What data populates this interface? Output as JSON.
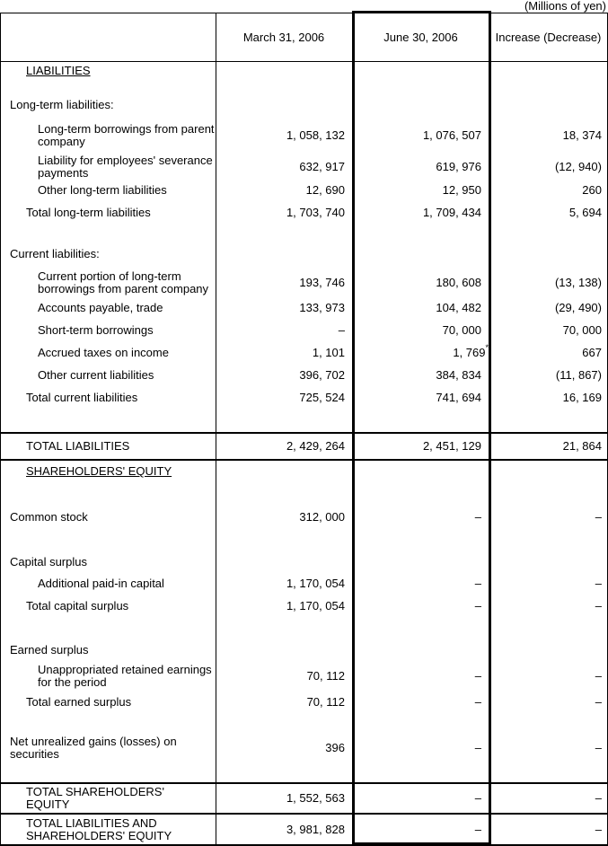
{
  "units_note": "(Millions of yen)",
  "header": {
    "col1": "",
    "col2": "March 31, 2006",
    "col3": "June 30, 2006",
    "col4": "Increase (Decrease)"
  },
  "sections": {
    "liabilities": {
      "rows": [
        {
          "label": "LIABILITIES",
          "indent": 1,
          "underline": true,
          "values": null,
          "mt": 3
        },
        {
          "label": "Long-term liabilities:",
          "indent": 0,
          "values": null,
          "mt": 24
        },
        {
          "label": "Long-term borrowings from parent\ncompany",
          "indent": 2,
          "lines": 2,
          "values": [
            "1, 058, 132",
            "1, 076, 507",
            "18, 374"
          ],
          "mt": 13
        },
        {
          "label": "Liability for employees' severance\npayments",
          "indent": 2,
          "lines": 2,
          "values": [
            "632, 917",
            "619, 976",
            "(12, 940)"
          ],
          "mt": 7
        },
        {
          "label": "Other long-term liabilities",
          "indent": 2,
          "values": [
            "12, 690",
            "12, 950",
            "260"
          ],
          "mt": 5
        },
        {
          "label": "Total long-term liabilities",
          "indent": 1,
          "values": [
            "1, 703, 740",
            "1, 709, 434",
            "5, 694"
          ],
          "mt": 11
        },
        {
          "label": "Current liabilities:",
          "indent": 0,
          "values": null,
          "mt": 32
        },
        {
          "label": "Current portion of long-term\nborrowings from parent company",
          "indent": 2,
          "lines": 2,
          "values": [
            "193, 746",
            "180, 608",
            "(13, 138)"
          ],
          "mt": 11
        },
        {
          "label": "Accounts payable, trade",
          "indent": 2,
          "values": [
            "133, 973",
            "104, 482",
            "(29, 490)"
          ],
          "mt": 7
        },
        {
          "label": "Short-term borrowings",
          "indent": 2,
          "values": [
            "–",
            "70, 000",
            "70, 000"
          ],
          "mt": 11
        },
        {
          "label": "Accrued taxes on income",
          "indent": 2,
          "values": [
            "1, 101",
            "1, 769",
            "667"
          ],
          "mark": "*",
          "mt": 11
        },
        {
          "label": "Other current liabilities",
          "indent": 2,
          "values": [
            "396, 702",
            "384, 834",
            "(11, 867)"
          ],
          "mt": 11
        },
        {
          "label": "Total current liabilities",
          "indent": 1,
          "values": [
            "725, 524",
            "741, 694",
            "16, 169"
          ],
          "mt": 11
        }
      ]
    },
    "total_liabilities": {
      "row": {
        "label": "TOTAL LIABILITIES",
        "indent": 1,
        "values": [
          "2, 429, 264",
          "2, 451, 129",
          "21, 864"
        ]
      }
    },
    "equity": {
      "rows": [
        {
          "label": "SHAREHOLDERS' EQUITY",
          "indent": 1,
          "underline": true,
          "values": null,
          "mt": 5
        },
        {
          "label": "Common stock",
          "indent": 0,
          "values": [
            "312, 000",
            "–",
            "–"
          ],
          "mt": 37
        },
        {
          "label": "Capital surplus",
          "indent": 0,
          "values": null,
          "mt": 36
        },
        {
          "label": "Additional paid-in capital",
          "indent": 2,
          "values": [
            "1, 170, 054",
            "–",
            "–"
          ],
          "mt": 10
        },
        {
          "label": "Total capital surplus",
          "indent": 1,
          "values": [
            "1, 170, 054",
            "–",
            "–"
          ],
          "mt": 11
        },
        {
          "label": "Earned surplus",
          "indent": 0,
          "values": null,
          "mt": 35
        },
        {
          "label": "Unappropriated retained earnings\nfor the period",
          "indent": 2,
          "lines": 2,
          "values": [
            "70, 112",
            "–",
            "–"
          ],
          "mt": 8
        },
        {
          "label": "Total earned surplus",
          "indent": 1,
          "values": [
            "70, 112",
            "–",
            "–"
          ],
          "mt": 8
        },
        {
          "label": "Net unrealized gains (losses) on\nsecurities",
          "indent": 0,
          "lines": 2,
          "values": [
            "396",
            "–",
            "–"
          ],
          "mt": 30
        }
      ]
    },
    "total_equity": {
      "row": {
        "label": "TOTAL SHAREHOLDERS'\nEQUITY",
        "indent": 1,
        "lines": 2,
        "values": [
          "1, 552, 563",
          "–",
          "–"
        ]
      }
    },
    "grand_total": {
      "row": {
        "label": "TOTAL LIABILITIES AND\nSHAREHOLDERS' EQUITY",
        "indent": 1,
        "lines": 2,
        "values": [
          "3, 981, 828",
          "–",
          "–"
        ]
      }
    }
  }
}
